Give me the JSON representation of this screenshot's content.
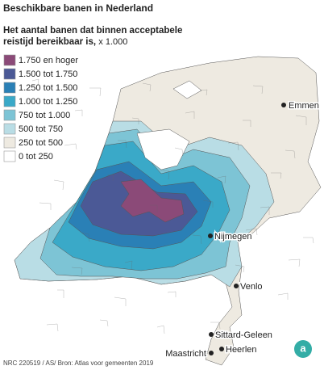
{
  "title": "Beschikbare banen in Nederland",
  "subtitle": [
    "Het aantal banen dat binnen acceptabele",
    "reistijd bereikbaar is,"
  ],
  "unit": "x 1.000",
  "legend": [
    {
      "label": "1.750 en hoger",
      "color": "#8b4a78"
    },
    {
      "label": "1.500 tot 1.750",
      "color": "#4b5996"
    },
    {
      "label": "1.250 tot 1.500",
      "color": "#2a80b6"
    },
    {
      "label": "1.000 tot 1.250",
      "color": "#3aa9c8"
    },
    {
      "label": "750 tot 1.000",
      "color": "#7dc4d5"
    },
    {
      "label": "500 tot 750",
      "color": "#b9dde5"
    },
    {
      "label": "250 tot 500",
      "color": "#eeeae1"
    },
    {
      "label": "0 tot 250",
      "color": "#ffffff"
    }
  ],
  "cities": [
    "Emmen",
    "Nijmegen",
    "Venlo",
    "Sittard-Geleen",
    "Heerlen",
    "Maastricht"
  ],
  "source": "NRC 220519 / AS/ Bron: Atlas voor gemeenten 2019"
}
